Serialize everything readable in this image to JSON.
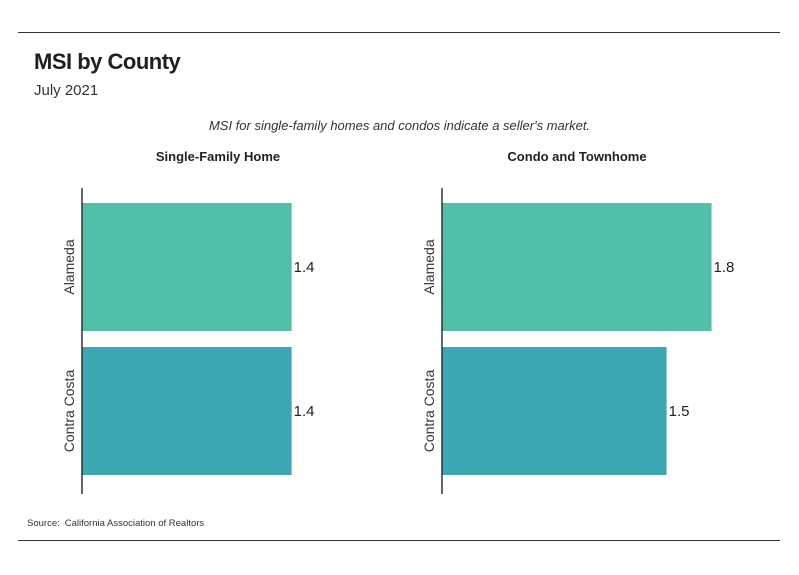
{
  "title": "MSI by County",
  "subtitle": "July 2021",
  "caption": "MSI for single-family homes and condos indicate a seller's market.",
  "source": {
    "label": "Source:",
    "text": "California Association of Realtors"
  },
  "colors": {
    "alameda": "#52bfa9",
    "contra_costa": "#3aa7b2",
    "axis": "#333333"
  },
  "chart_data": [
    {
      "type": "bar",
      "orientation": "horizontal",
      "title": "Single-Family Home",
      "categories": [
        "Alameda",
        "Contra Costa"
      ],
      "values": [
        1.4,
        1.4
      ],
      "value_labels": [
        "1.4",
        "1.4"
      ],
      "xlim": [
        0,
        1.97
      ]
    },
    {
      "type": "bar",
      "orientation": "horizontal",
      "title": "Condo and Townhome",
      "categories": [
        "Alameda",
        "Contra Costa"
      ],
      "values": [
        1.8,
        1.5
      ],
      "value_labels": [
        "1.8",
        "1.5"
      ],
      "xlim": [
        0,
        1.97
      ]
    }
  ]
}
